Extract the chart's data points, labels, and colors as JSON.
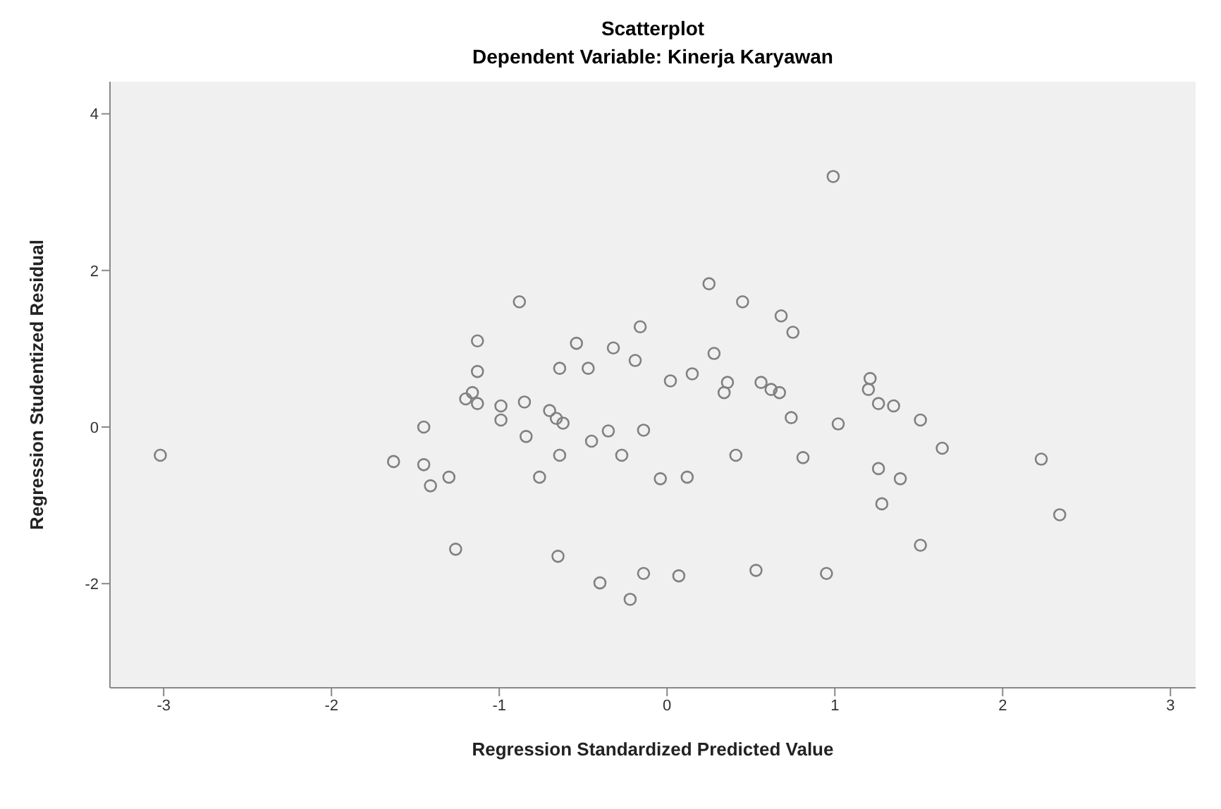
{
  "chart_data": {
    "type": "scatter",
    "title": "Scatterplot",
    "subtitle": "Dependent Variable: Kinerja Karyawan",
    "xlabel": "Regression Standardized Predicted Value",
    "ylabel": "Regression Studentized Residual",
    "xlim": [
      -3.32,
      3.15
    ],
    "xticks": [
      -3,
      -2,
      -1,
      0,
      1,
      2,
      3
    ],
    "ylim": [
      -3.33,
      4.41
    ],
    "yticks": [
      -2,
      0,
      2,
      4
    ],
    "grid": false,
    "marker": "circle",
    "series": [
      {
        "color": "#808080",
        "x": [
          -3.02,
          -1.63,
          -1.45,
          -1.45,
          -1.41,
          -1.3,
          -1.26,
          -1.13,
          -1.13,
          -1.16,
          -1.2,
          -1.13,
          -0.99,
          -0.99,
          -0.88,
          -0.85,
          -0.84,
          -0.76,
          -0.7,
          -0.66,
          -0.62,
          -0.64,
          -0.64,
          -0.65,
          -0.54,
          -0.47,
          -0.45,
          -0.4,
          -0.35,
          -0.32,
          -0.27,
          -0.22,
          -0.19,
          -0.16,
          -0.14,
          -0.14,
          -0.04,
          0.02,
          0.07,
          0.12,
          0.15,
          0.25,
          0.28,
          0.34,
          0.36,
          0.41,
          0.45,
          0.53,
          0.56,
          0.62,
          0.67,
          0.68,
          0.74,
          0.75,
          0.81,
          0.95,
          0.99,
          1.02,
          1.2,
          1.21,
          1.26,
          1.26,
          1.28,
          1.35,
          1.39,
          1.51,
          1.51,
          1.64,
          2.23,
          2.34
        ],
        "values": [
          -0.36,
          -0.44,
          0,
          -0.48,
          -0.75,
          -0.64,
          -1.56,
          1.1,
          0.71,
          0.44,
          0.36,
          0.3,
          0.27,
          0.09,
          1.6,
          0.32,
          -0.12,
          -0.64,
          0.21,
          0.11,
          0.05,
          0.75,
          -0.36,
          -1.65,
          1.07,
          0.75,
          -0.18,
          -1.99,
          -0.05,
          1.01,
          -0.36,
          -2.2,
          0.85,
          1.28,
          -0.04,
          -1.87,
          -0.66,
          0.59,
          -1.9,
          -0.64,
          0.68,
          1.83,
          0.94,
          0.44,
          0.57,
          -0.36,
          1.6,
          -1.83,
          0.57,
          0.48,
          0.44,
          1.42,
          0.12,
          1.21,
          -0.39,
          -1.87,
          3.2,
          0.04,
          0.48,
          0.62,
          0.3,
          -0.53,
          -0.98,
          0.27,
          -0.66,
          0.09,
          -1.51,
          -0.27,
          -0.41,
          -1.12
        ]
      }
    ]
  }
}
